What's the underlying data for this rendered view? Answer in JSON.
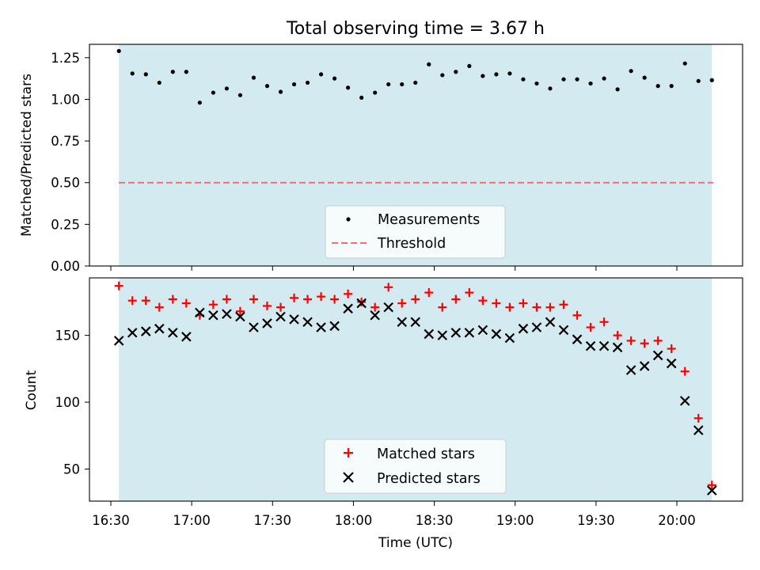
{
  "chart_data": [
    {
      "type": "scatter",
      "title": "Total observing time = 3.67 h",
      "ylabel": "Matched/Predicted stars",
      "ylim": [
        0,
        1.33
      ],
      "yticks": [
        "0.00",
        "0.25",
        "0.50",
        "0.75",
        "1.00",
        "1.25"
      ],
      "shaded_span": [
        "16:33",
        "20:13"
      ],
      "shade_color": "#d3eaf0",
      "threshold": 0.5,
      "series": [
        {
          "name": "Measurements",
          "marker": "dot",
          "color": "#000000",
          "x": [
            "16:33",
            "16:38",
            "16:43",
            "16:48",
            "16:53",
            "16:58",
            "17:03",
            "17:08",
            "17:13",
            "17:18",
            "17:23",
            "17:28",
            "17:33",
            "17:38",
            "17:43",
            "17:48",
            "17:53",
            "17:58",
            "18:03",
            "18:08",
            "18:13",
            "18:18",
            "18:23",
            "18:28",
            "18:33",
            "18:38",
            "18:43",
            "18:48",
            "18:53",
            "18:58",
            "19:03",
            "19:08",
            "19:13",
            "19:18",
            "19:23",
            "19:28",
            "19:33",
            "19:38",
            "19:43",
            "19:48",
            "19:53",
            "19:58",
            "20:03",
            "20:08",
            "20:13"
          ],
          "y": [
            1.29,
            1.155,
            1.15,
            1.1,
            1.165,
            1.165,
            0.98,
            1.04,
            1.065,
            1.025,
            1.13,
            1.08,
            1.045,
            1.09,
            1.1,
            1.15,
            1.125,
            1.07,
            1.01,
            1.04,
            1.09,
            1.09,
            1.1,
            1.21,
            1.145,
            1.165,
            1.2,
            1.14,
            1.15,
            1.155,
            1.12,
            1.095,
            1.065,
            1.12,
            1.12,
            1.095,
            1.125,
            1.06,
            1.17,
            1.13,
            1.08,
            1.08,
            1.215,
            1.11,
            1.115
          ]
        },
        {
          "name": "Threshold",
          "style": "dashed",
          "color": "#f07070"
        }
      ],
      "legend": "lower-center"
    },
    {
      "type": "scatter",
      "ylabel": "Count",
      "xlabel": "Time (UTC)",
      "xticks": [
        "16:30",
        "17:00",
        "17:30",
        "18:00",
        "18:30",
        "19:00",
        "19:30",
        "20:00"
      ],
      "yticks": [
        "50",
        "100",
        "150"
      ],
      "ylim": [
        26,
        193
      ],
      "series": [
        {
          "name": "Matched stars",
          "marker": "plus",
          "color": "#ff0000",
          "y": [
            187,
            176,
            176,
            171,
            177,
            174,
            165,
            173,
            177,
            168,
            177,
            172,
            171,
            178,
            177,
            179,
            177,
            181,
            175,
            171,
            186,
            174,
            177,
            182,
            171,
            177,
            182,
            176,
            174,
            171,
            174,
            171,
            171,
            173,
            165,
            156,
            160,
            150,
            146,
            144,
            146,
            140,
            123,
            88,
            38
          ]
        },
        {
          "name": "Predicted stars",
          "marker": "x",
          "color": "#000000",
          "y": [
            146,
            152,
            153,
            155,
            152,
            149,
            167,
            165,
            166,
            164,
            156,
            159,
            164,
            162,
            160,
            156,
            157,
            170,
            174,
            165,
            171,
            160,
            160,
            151,
            150,
            152,
            152,
            154,
            151,
            148,
            155,
            156,
            160,
            154,
            147,
            142,
            142,
            141,
            124,
            127,
            135,
            129,
            101,
            79,
            34
          ]
        }
      ],
      "legend": "lower-center"
    }
  ]
}
